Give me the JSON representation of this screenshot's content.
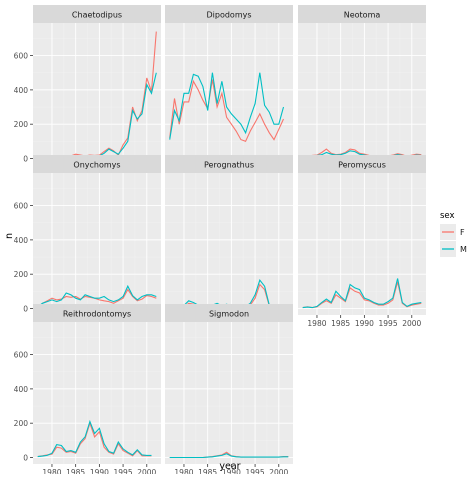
{
  "chart_data": {
    "type": "line",
    "facet_by": "genus",
    "xlabel": "year",
    "ylabel": "n",
    "xlim": [
      1976,
      2003
    ],
    "ylim": [
      -38,
      790
    ],
    "x_ticks": [
      1980,
      1985,
      1990,
      1995,
      2000
    ],
    "y_ticks": [
      0,
      200,
      400,
      600
    ],
    "grid": true,
    "legend": {
      "title": "sex",
      "placement": "right",
      "entries": [
        {
          "label": "F",
          "color": "#F8766D"
        },
        {
          "label": "M",
          "color": "#00BFC4"
        }
      ]
    },
    "x": [
      1977,
      1978,
      1979,
      1980,
      1981,
      1982,
      1983,
      1984,
      1985,
      1986,
      1987,
      1988,
      1989,
      1990,
      1991,
      1992,
      1993,
      1994,
      1995,
      1996,
      1997,
      1998,
      1999,
      2000,
      2001,
      2002
    ],
    "panels": [
      {
        "title": "Chaetodipus",
        "series": [
          {
            "name": "F",
            "values": [
              0,
              2,
              5,
              7,
              5,
              10,
              12,
              15,
              25,
              20,
              15,
              20,
              18,
              20,
              40,
              60,
              45,
              20,
              80,
              120,
              300,
              220,
              280,
              470,
              390,
              740
            ]
          },
          {
            "name": "M",
            "values": [
              0,
              0,
              6,
              6,
              4,
              5,
              6,
              8,
              10,
              12,
              10,
              12,
              12,
              15,
              30,
              55,
              40,
              25,
              60,
              100,
              280,
              230,
              260,
              430,
              380,
              500
            ]
          }
        ]
      },
      {
        "title": "Dipodomys",
        "series": [
          {
            "name": "F",
            "values": [
              120,
              350,
              200,
              330,
              330,
              450,
              400,
              340,
              290,
              460,
              300,
              380,
              240,
              200,
              160,
              110,
              100,
              160,
              210,
              260,
              200,
              150,
              110,
              170,
              230,
              null
            ]
          },
          {
            "name": "M",
            "values": [
              110,
              280,
              220,
              380,
              380,
              490,
              480,
              420,
              280,
              500,
              320,
              450,
              300,
              260,
              230,
              200,
              150,
              240,
              320,
              500,
              310,
              270,
              200,
              200,
              300,
              null
            ]
          }
        ]
      },
      {
        "title": "Neotoma",
        "series": [
          {
            "name": "F",
            "values": [
              8,
              12,
              18,
              20,
              35,
              55,
              30,
              22,
              25,
              35,
              55,
              50,
              30,
              25,
              18,
              15,
              12,
              15,
              14,
              20,
              28,
              22,
              12,
              20,
              25,
              22
            ]
          },
          {
            "name": "M",
            "values": [
              6,
              10,
              14,
              18,
              22,
              35,
              25,
              20,
              22,
              30,
              45,
              40,
              25,
              20,
              15,
              12,
              10,
              12,
              12,
              16,
              22,
              18,
              10,
              15,
              20,
              18
            ]
          }
        ]
      },
      {
        "title": "Onychomys",
        "series": [
          {
            "name": "F",
            "values": [
              0,
              30,
              45,
              60,
              50,
              55,
              70,
              65,
              70,
              55,
              70,
              65,
              60,
              50,
              45,
              40,
              30,
              45,
              60,
              110,
              70,
              45,
              55,
              75,
              70,
              60
            ]
          },
          {
            "name": "M",
            "values": [
              10,
              30,
              40,
              50,
              40,
              50,
              90,
              80,
              60,
              50,
              80,
              70,
              60,
              60,
              70,
              50,
              40,
              50,
              70,
              130,
              75,
              50,
              70,
              80,
              80,
              70
            ]
          }
        ]
      },
      {
        "title": "Perognathus",
        "series": [
          {
            "name": "F",
            "values": [
              5,
              8,
              5,
              10,
              30,
              25,
              15,
              10,
              10,
              15,
              20,
              10,
              15,
              10,
              5,
              5,
              10,
              20,
              60,
              140,
              110,
              15,
              10,
              10,
              10,
              5
            ]
          },
          {
            "name": "M",
            "values": [
              8,
              15,
              10,
              18,
              45,
              35,
              20,
              15,
              12,
              20,
              30,
              15,
              25,
              15,
              10,
              8,
              12,
              30,
              80,
              165,
              130,
              20,
              15,
              15,
              15,
              8
            ]
          }
        ]
      },
      {
        "title": "Peromyscus",
        "series": [
          {
            "name": "F",
            "values": [
              5,
              10,
              5,
              10,
              30,
              45,
              30,
              80,
              60,
              40,
              120,
              100,
              90,
              50,
              45,
              30,
              20,
              20,
              30,
              50,
              155,
              30,
              10,
              20,
              25,
              30
            ]
          },
          {
            "name": "M",
            "values": [
              5,
              8,
              5,
              12,
              35,
              55,
              35,
              100,
              70,
              45,
              140,
              120,
              110,
              60,
              50,
              35,
              25,
              25,
              40,
              60,
              175,
              35,
              12,
              25,
              30,
              35
            ]
          }
        ]
      },
      {
        "title": "Reithrodontomys",
        "series": [
          {
            "name": "F",
            "values": [
              5,
              10,
              15,
              20,
              60,
              55,
              30,
              35,
              25,
              80,
              110,
              200,
              120,
              150,
              60,
              30,
              20,
              80,
              40,
              25,
              10,
              40,
              10,
              10,
              10,
              null
            ]
          },
          {
            "name": "M",
            "values": [
              5,
              8,
              12,
              25,
              75,
              70,
              35,
              40,
              30,
              90,
              120,
              210,
              140,
              170,
              80,
              35,
              25,
              90,
              50,
              30,
              15,
              45,
              15,
              12,
              12,
              null
            ]
          }
        ]
      },
      {
        "title": "Sigmodon",
        "series": [
          {
            "name": "F",
            "values": [
              0,
              0,
              0,
              0,
              0,
              0,
              0,
              0,
              2,
              5,
              10,
              15,
              30,
              10,
              5,
              2,
              2,
              2,
              2,
              2,
              2,
              2,
              2,
              2,
              5,
              5
            ]
          },
          {
            "name": "M",
            "values": [
              0,
              0,
              0,
              0,
              0,
              0,
              0,
              0,
              2,
              4,
              8,
              12,
              22,
              8,
              4,
              2,
              2,
              2,
              2,
              2,
              2,
              2,
              2,
              2,
              4,
              4
            ]
          }
        ]
      }
    ]
  }
}
